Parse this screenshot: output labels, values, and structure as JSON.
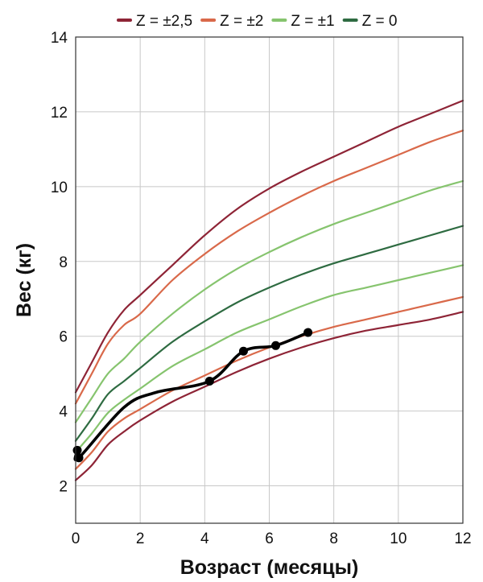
{
  "chart_data": {
    "type": "line",
    "xlabel": "Возраст (месяцы)",
    "ylabel": "Вес (кг)",
    "xlim": [
      0,
      12
    ],
    "ylim": [
      1,
      14
    ],
    "xticks": [
      0,
      2,
      4,
      6,
      8,
      10,
      12
    ],
    "yticks": [
      2,
      4,
      6,
      8,
      10,
      12,
      14
    ],
    "grid": true,
    "legend_position": "top",
    "legend": [
      {
        "label": "Z = ±2,5",
        "color": "#8e2436"
      },
      {
        "label": "Z = ±2",
        "color": "#d9694a"
      },
      {
        "label": "Z = ±1",
        "color": "#86c46e"
      },
      {
        "label": "Z = 0",
        "color": "#2e6b41"
      }
    ],
    "curves": [
      {
        "group": "Z = ±2,5",
        "color": "#8e2436",
        "x": [
          0,
          0.5,
          1,
          1.5,
          2,
          3,
          4,
          5,
          6,
          7,
          8,
          9,
          10,
          11,
          12
        ],
        "y": [
          4.5,
          5.3,
          6.1,
          6.7,
          7.1,
          7.9,
          8.7,
          9.4,
          9.95,
          10.4,
          10.8,
          11.2,
          11.6,
          11.95,
          12.3
        ]
      },
      {
        "group": "Z = ±2",
        "color": "#d9694a",
        "x": [
          0,
          0.5,
          1,
          1.5,
          2,
          3,
          4,
          5,
          6,
          7,
          8,
          9,
          10,
          11,
          12
        ],
        "y": [
          4.2,
          5.0,
          5.8,
          6.3,
          6.6,
          7.5,
          8.2,
          8.8,
          9.3,
          9.75,
          10.15,
          10.5,
          10.85,
          11.2,
          11.5
        ]
      },
      {
        "group": "Z = ±1",
        "color": "#86c46e",
        "x": [
          0,
          0.5,
          1,
          1.5,
          2,
          3,
          4,
          5,
          6,
          7,
          8,
          9,
          10,
          11,
          12
        ],
        "y": [
          3.7,
          4.35,
          5.0,
          5.4,
          5.85,
          6.6,
          7.25,
          7.8,
          8.25,
          8.65,
          9.0,
          9.3,
          9.6,
          9.9,
          10.15
        ]
      },
      {
        "group": "Z = 0",
        "color": "#2e6b41",
        "x": [
          0,
          0.5,
          1,
          1.5,
          2,
          3,
          4,
          5,
          6,
          7,
          8,
          9,
          10,
          11,
          12
        ],
        "y": [
          3.2,
          3.8,
          4.45,
          4.8,
          5.15,
          5.85,
          6.4,
          6.9,
          7.3,
          7.65,
          7.95,
          8.2,
          8.45,
          8.7,
          8.95
        ]
      },
      {
        "group": "Z = ±1",
        "color": "#86c46e",
        "x": [
          0,
          0.5,
          1,
          1.5,
          2,
          3,
          4,
          5,
          6,
          7,
          8,
          9,
          10,
          11,
          12
        ],
        "y": [
          2.9,
          3.4,
          3.95,
          4.3,
          4.6,
          5.2,
          5.65,
          6.1,
          6.45,
          6.8,
          7.1,
          7.3,
          7.5,
          7.7,
          7.9
        ]
      },
      {
        "group": "Z = ±2",
        "color": "#d9694a",
        "x": [
          0,
          0.5,
          1,
          1.5,
          2,
          3,
          4,
          5,
          6,
          7,
          8,
          9,
          10,
          11,
          12
        ],
        "y": [
          2.45,
          2.9,
          3.45,
          3.8,
          4.05,
          4.55,
          4.95,
          5.35,
          5.7,
          6.0,
          6.25,
          6.45,
          6.65,
          6.85,
          7.05
        ]
      },
      {
        "group": "Z = ±2,5",
        "color": "#8e2436",
        "x": [
          0,
          0.5,
          1,
          1.5,
          2,
          3,
          4,
          5,
          6,
          7,
          8,
          9,
          10,
          11,
          12
        ],
        "y": [
          2.15,
          2.55,
          3.1,
          3.45,
          3.75,
          4.25,
          4.65,
          5.05,
          5.4,
          5.7,
          5.95,
          6.15,
          6.3,
          6.45,
          6.65
        ]
      }
    ],
    "measurements": {
      "color": "#000000",
      "x": [
        0.05,
        0.1,
        1.5,
        2.5,
        4.15,
        5.2,
        6.2,
        7.2
      ],
      "y": [
        2.95,
        2.75,
        4.1,
        4.5,
        4.8,
        5.6,
        5.75,
        6.1
      ],
      "markers": [
        true,
        true,
        false,
        false,
        true,
        true,
        true,
        true
      ]
    }
  }
}
